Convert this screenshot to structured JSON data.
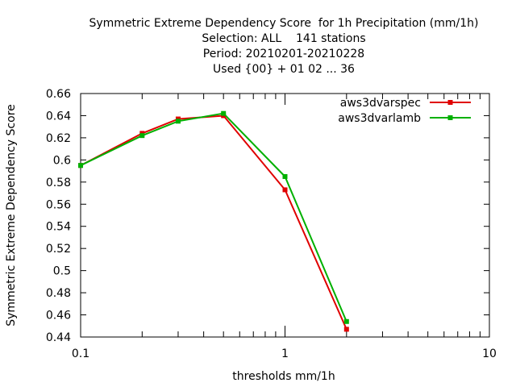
{
  "chart_data": {
    "type": "line",
    "title_lines": [
      "Symmetric Extreme Dependency Score  for 1h Precipitation (mm/1h)",
      "Selection: ALL    141 stations",
      "Period: 20210201-20210228",
      "Used {00} + 01 02 ... 36"
    ],
    "xlabel": "thresholds mm/1h",
    "ylabel": "Symmetric Extreme Dependency Score",
    "x_scale": "log",
    "xlim": [
      0.1,
      10
    ],
    "ylim": [
      0.44,
      0.66
    ],
    "x_tick_labels": [
      "0.1",
      "1",
      "10"
    ],
    "y_ticks": [
      0.44,
      0.46,
      0.48,
      0.5,
      0.52,
      0.54,
      0.56,
      0.58,
      0.6,
      0.62,
      0.64,
      0.66
    ],
    "y_tick_labels": [
      "0.44",
      "0.46",
      "0.48",
      "0.5",
      "0.52",
      "0.54",
      "0.56",
      "0.58",
      "0.6",
      "0.62",
      "0.64",
      "0.66"
    ],
    "grid": false,
    "legend_position": "top-right",
    "x": [
      0.1,
      0.2,
      0.3,
      0.5,
      1.0,
      2.0
    ],
    "series": [
      {
        "name": "aws3dvarspec",
        "color": "#e00000",
        "values": [
          0.595,
          0.624,
          0.637,
          0.64,
          0.573,
          0.447
        ]
      },
      {
        "name": "aws3dvarlamb",
        "color": "#00b000",
        "values": [
          0.595,
          0.622,
          0.635,
          0.642,
          0.585,
          0.454
        ]
      }
    ]
  }
}
